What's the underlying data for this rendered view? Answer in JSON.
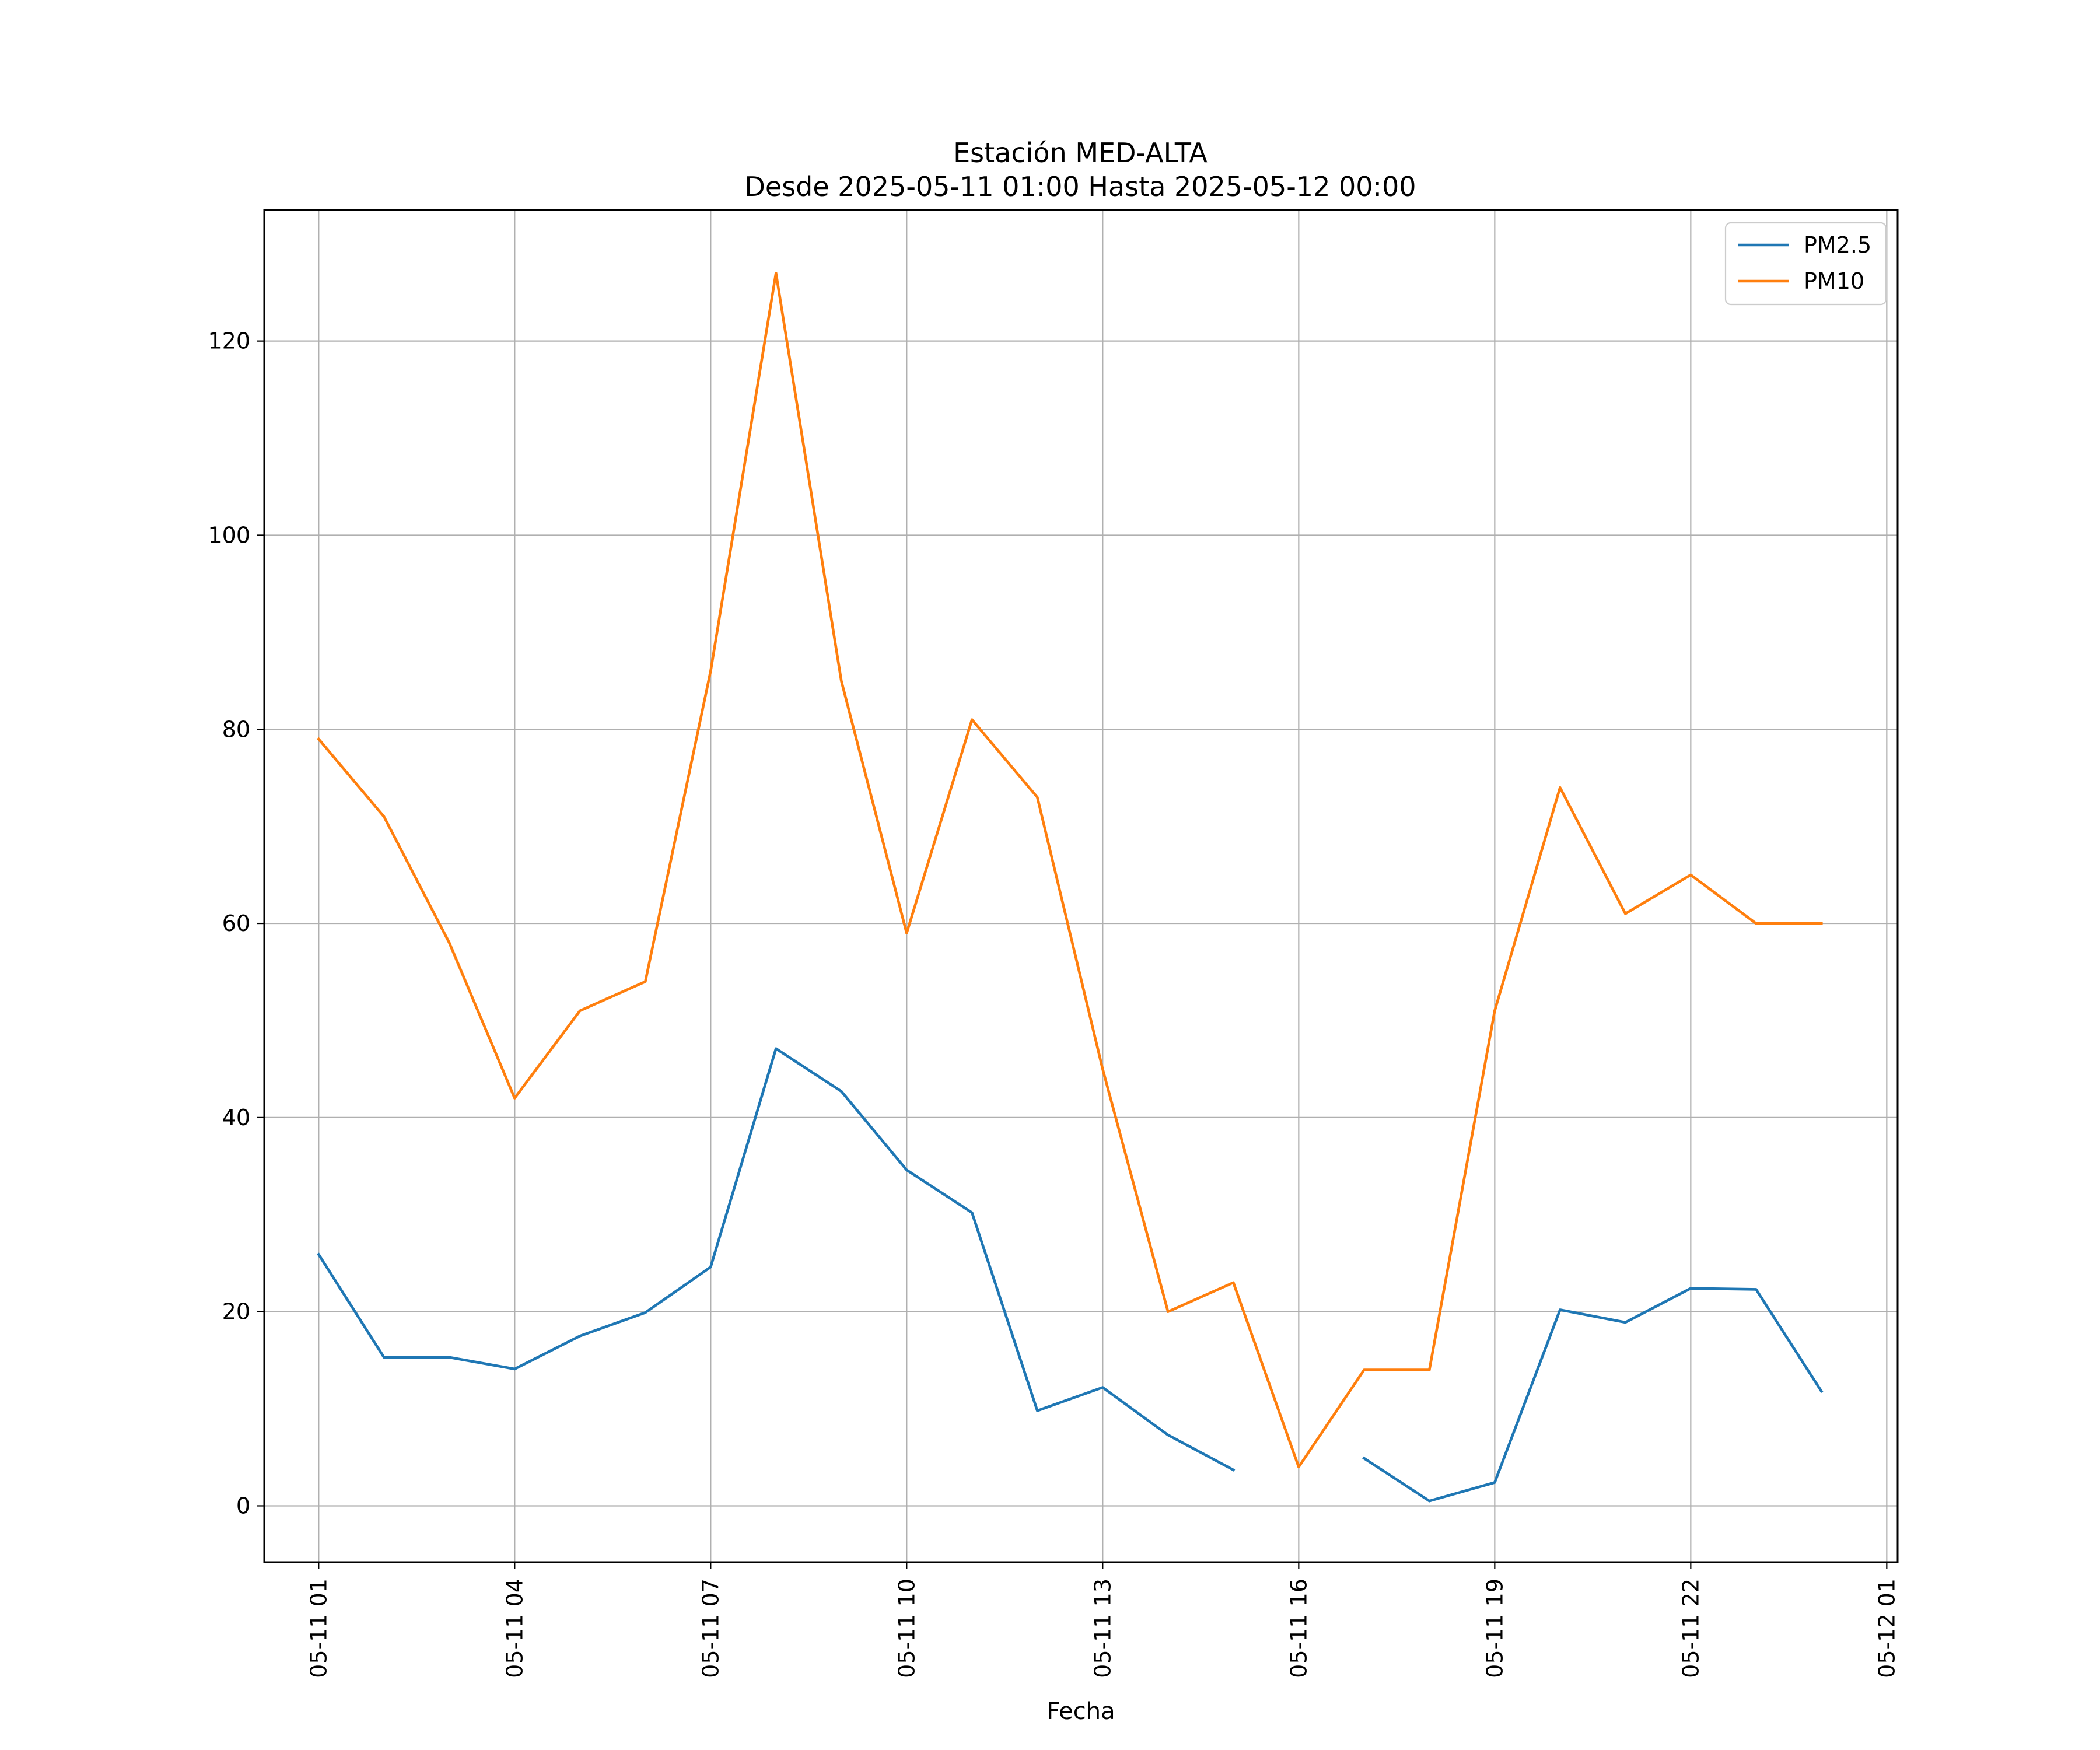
{
  "chart_data": {
    "type": "line",
    "title": "Estación MED-ALTA",
    "subtitle": "Desde 2025-05-11 01:00 Hasta 2025-05-12 00:00",
    "xlabel": "Fecha",
    "ylabel": "",
    "x": [
      "05-11 01",
      "05-11 02",
      "05-11 03",
      "05-11 04",
      "05-11 05",
      "05-11 06",
      "05-11 07",
      "05-11 08",
      "05-11 09",
      "05-11 10",
      "05-11 11",
      "05-11 12",
      "05-11 13",
      "05-11 14",
      "05-11 15",
      "05-11 16",
      "05-11 17",
      "05-11 18",
      "05-11 19",
      "05-11 20",
      "05-11 21",
      "05-11 22",
      "05-11 23",
      "05-12 00"
    ],
    "series": [
      {
        "name": "PM2.5",
        "color": "#1f77b4",
        "values": [
          25.9,
          15.3,
          15.3,
          14.1,
          17.5,
          19.9,
          24.6,
          47.1,
          42.7,
          34.6,
          30.2,
          9.8,
          12.2,
          7.3,
          3.7,
          null,
          4.9,
          0.5,
          2.4,
          20.2,
          18.9,
          22.4,
          22.3,
          11.8
        ]
      },
      {
        "name": "PM10",
        "color": "#ff7f0e",
        "values": [
          79,
          71,
          58,
          42,
          51,
          54,
          86,
          127,
          85,
          59,
          81,
          73,
          45,
          20,
          23,
          4,
          14,
          14,
          51,
          74,
          61,
          65,
          60,
          60
        ]
      }
    ],
    "x_ticks": [
      "05-11 01",
      "05-11 04",
      "05-11 07",
      "05-11 10",
      "05-11 13",
      "05-11 16",
      "05-11 19",
      "05-11 22",
      "05-12 01"
    ],
    "y_ticks": [
      0,
      20,
      40,
      60,
      80,
      100,
      120
    ],
    "xlim": [
      "05-11 00:10",
      "05-12 01:10"
    ],
    "ylim": [
      -5.8,
      133.5
    ],
    "grid": true,
    "legend_position": "top-right"
  }
}
